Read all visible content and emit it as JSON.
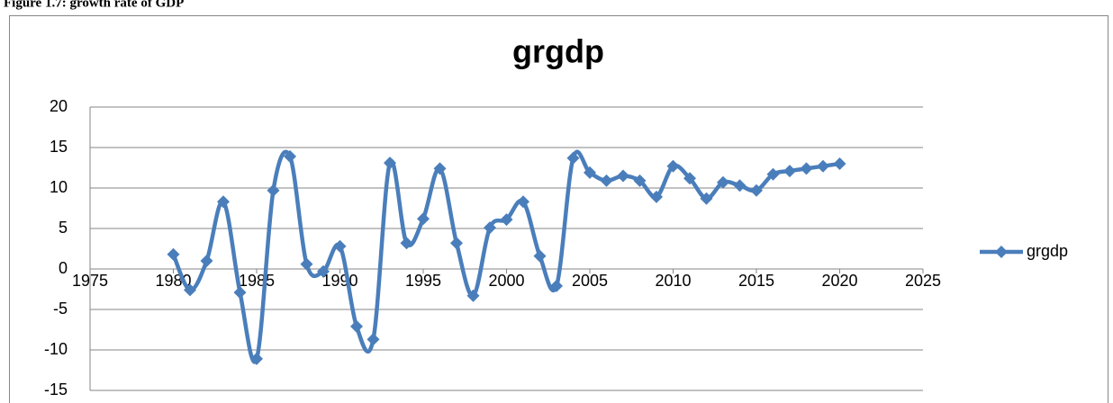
{
  "caption": "Figure 1.7: growth rate of GDP",
  "chart_data": {
    "type": "line",
    "title": "grgdp",
    "x": [
      1980,
      1981,
      1982,
      1983,
      1984,
      1985,
      1986,
      1987,
      1988,
      1989,
      1990,
      1991,
      1992,
      1993,
      1994,
      1995,
      1996,
      1997,
      1998,
      1999,
      2000,
      2001,
      2002,
      2003,
      2004,
      2005,
      2006,
      2007,
      2008,
      2009,
      2010,
      2011,
      2012,
      2013,
      2014,
      2015,
      2016,
      2017,
      2018,
      2019,
      2020
    ],
    "series": [
      {
        "name": "grgdp",
        "color": "#4a7ebb",
        "values": [
          1.8,
          -2.6,
          1.0,
          8.3,
          -2.9,
          -11.1,
          9.7,
          13.9,
          0.6,
          -0.3,
          2.8,
          -7.1,
          -8.7,
          13.1,
          3.2,
          6.2,
          12.4,
          3.2,
          -3.3,
          5.1,
          6.1,
          8.3,
          1.6,
          -2.1,
          13.7,
          11.9,
          10.9,
          11.5,
          10.9,
          8.9,
          12.7,
          11.2,
          8.7,
          10.7,
          10.3,
          9.7,
          11.7,
          12.1,
          12.4,
          12.7,
          13.0
        ]
      }
    ],
    "xlim": [
      1975,
      2025
    ],
    "xticks": [
      1975,
      1980,
      1985,
      1990,
      1995,
      2000,
      2005,
      2010,
      2015,
      2020,
      2025
    ],
    "ylim": [
      -15,
      20
    ],
    "yticks": [
      -15,
      -10,
      -5,
      0,
      5,
      10,
      15,
      20
    ],
    "grid": true,
    "smooth": true,
    "legend": "right"
  }
}
